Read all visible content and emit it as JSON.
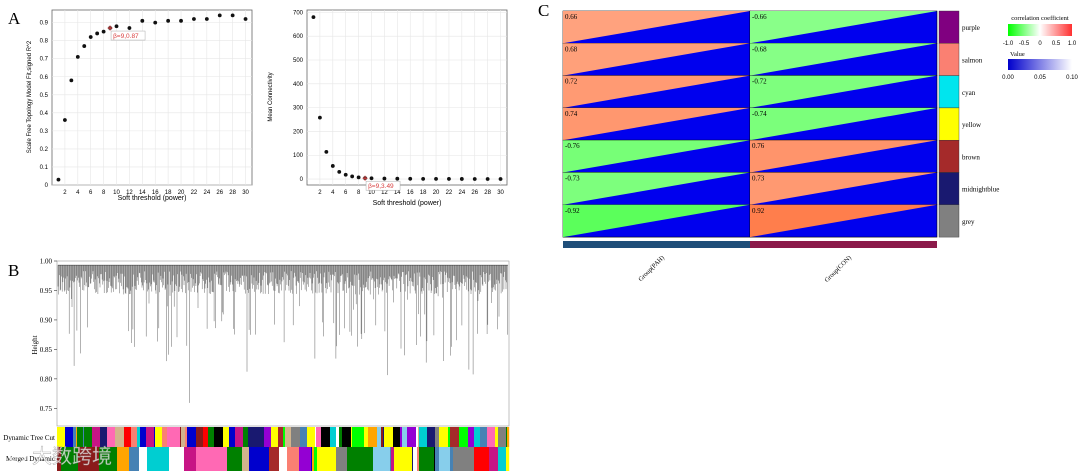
{
  "panels": {
    "a": {
      "letter": "A"
    },
    "b": {
      "letter": "B"
    },
    "c": {
      "letter": "C"
    }
  },
  "chart_data": [
    {
      "id": "scale-free-fit",
      "type": "scatter",
      "xlabel": "Soft threshold (power)",
      "ylabel": "Scale Free Topology Model Fit,signed R^2",
      "xlim": [
        0,
        31
      ],
      "ylim": [
        0,
        0.97
      ],
      "xticks": [
        2,
        4,
        6,
        8,
        10,
        12,
        14,
        16,
        18,
        20,
        22,
        24,
        26,
        28,
        30
      ],
      "yticks": [
        0,
        0.1,
        0.2,
        0.3,
        0.4,
        0.5,
        0.6,
        0.7,
        0.8,
        0.9
      ],
      "grid": true,
      "x": [
        1,
        2,
        3,
        4,
        5,
        6,
        7,
        8,
        9,
        10,
        12,
        14,
        16,
        18,
        20,
        22,
        24,
        26,
        28,
        30
      ],
      "y": [
        0.03,
        0.36,
        0.58,
        0.71,
        0.77,
        0.82,
        0.84,
        0.85,
        0.87,
        0.88,
        0.87,
        0.91,
        0.9,
        0.91,
        0.91,
        0.92,
        0.92,
        0.94,
        0.94,
        0.92
      ],
      "highlight": {
        "x": 9,
        "y": 0.87,
        "label": "β=9,0.87",
        "color": "#d94040"
      }
    },
    {
      "id": "mean-connectivity",
      "type": "scatter",
      "xlabel": "Soft threshold (power)",
      "ylabel": "Mean Connectivity",
      "xlim": [
        0,
        31
      ],
      "ylim": [
        -25,
        710
      ],
      "xticks": [
        2,
        4,
        6,
        8,
        10,
        12,
        14,
        16,
        18,
        20,
        22,
        24,
        26,
        28,
        30
      ],
      "yticks": [
        0,
        100,
        200,
        300,
        400,
        500,
        600,
        700
      ],
      "grid": true,
      "x": [
        1,
        2,
        3,
        4,
        5,
        6,
        7,
        8,
        9,
        10,
        12,
        14,
        16,
        18,
        20,
        22,
        24,
        26,
        28,
        30
      ],
      "y": [
        680,
        258,
        114,
        55,
        30,
        18,
        11,
        7,
        4,
        3.49,
        2,
        1.5,
        1,
        0.8,
        0.6,
        0.5,
        0.4,
        0.3,
        0.3,
        0.2
      ],
      "highlight": {
        "x": 9,
        "y": 3.49,
        "label": "β=9,3.49",
        "color": "#d94040"
      }
    },
    {
      "id": "gene-dendrogram",
      "type": "dendrogram",
      "ylabel": "Height",
      "ylim": [
        0.72,
        1.0
      ],
      "yticks": [
        0.75,
        0.8,
        0.85,
        0.9,
        0.95,
        1.0
      ],
      "tracks": [
        "Dynamic Tree Cut",
        "Merged Dynamic"
      ],
      "track_colors": [
        "#8b1a1a",
        "#ffff00",
        "#00ced1",
        "#c71585",
        "#ffffff",
        "#fa8072",
        "#9400d3",
        "#0000cd",
        "#ff0000",
        "#00ff00",
        "#ff69b4",
        "#000000",
        "#d2b48c",
        "#808080",
        "#191970",
        "#008000",
        "#87ceeb",
        "#ffa500",
        "#a52a2a",
        "#4682b4"
      ]
    },
    {
      "id": "module-trait-heatmap",
      "type": "heatmap",
      "columns": [
        "Group(PAH)",
        "Group(CON)"
      ],
      "column_bar_colors": [
        "#1f4e79",
        "#8b1a4a"
      ],
      "rows": [
        "purple",
        "salmon",
        "cyan",
        "yellow",
        "brown",
        "midnightblue",
        "grey"
      ],
      "row_colors": [
        "#800080",
        "#fa8072",
        "#00e5ee",
        "#ffff00",
        "#a52a2a",
        "#191970",
        "#808080"
      ],
      "values": [
        [
          0.66,
          -0.66
        ],
        [
          0.68,
          -0.68
        ],
        [
          0.72,
          -0.72
        ],
        [
          0.74,
          -0.74
        ],
        [
          -0.76,
          0.76
        ],
        [
          -0.73,
          0.73
        ],
        [
          -0.92,
          0.92
        ]
      ],
      "pvalue_color": "#0000ee",
      "legend": {
        "coef_title": "correlation coefficient",
        "coef_ticks": [
          "-1.0",
          "-0.5",
          "0",
          "0.5",
          "1.0"
        ],
        "value_title": "Value",
        "value_ticks": [
          "0.00",
          "0.05",
          "0.10"
        ]
      }
    }
  ],
  "watermark": {
    "text": "大数跨境"
  }
}
